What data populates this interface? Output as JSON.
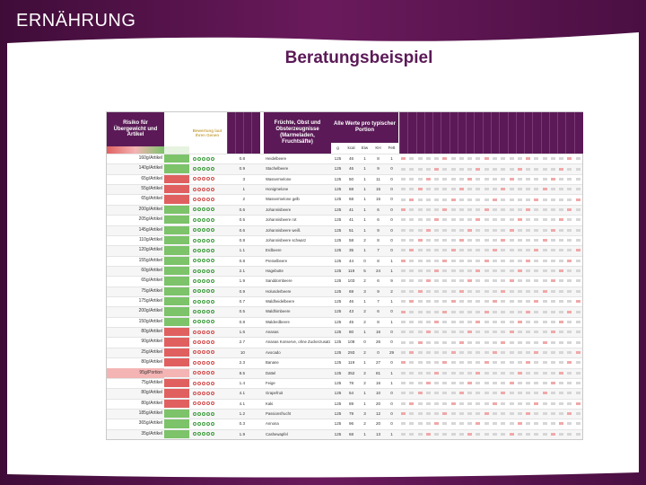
{
  "header": {
    "section": "ERNÄHRUNG",
    "title": "Beratungsbeispiel"
  },
  "table": {
    "columns": {
      "risk": "Risiko für Übergewicht und Artikel",
      "rating": "Bewertung laut Ihren Genen",
      "food": "Früchte, Obst und Obsterzeugnisse (Marmeladen, Fruchtsäfte)",
      "portion": "Alle Werte pro typischer Portion",
      "g": "g",
      "kcal": "kcal",
      "eiw": "Eiw",
      "kh": "KH",
      "fett": "Fett"
    },
    "level_colors": {
      "green": "#7cc36a",
      "red": "#e06060",
      "pale": "#f4b4b4"
    },
    "rows": [
      {
        "risk": "160g/Artikel",
        "score": 0.8,
        "food": "Heidelbeere",
        "g": 125,
        "kcal": 46,
        "eiw": 1,
        "kh": 8,
        "fett": 1,
        "level": "green"
      },
      {
        "risk": "140g/Artikel",
        "score": 0.9,
        "food": "Stachelbeere",
        "g": 125,
        "kcal": 46,
        "eiw": 1,
        "kh": 9,
        "fett": 0,
        "level": "green"
      },
      {
        "risk": "65g/Artikel",
        "score": 3,
        "food": "Wassermelone",
        "g": 125,
        "kcal": 50,
        "eiw": 1,
        "kh": 11,
        "fett": 0,
        "level": "red"
      },
      {
        "risk": "55g/Artikel",
        "score": 1,
        "food": "Honigmelone",
        "g": 125,
        "kcal": 68,
        "eiw": 1,
        "kh": 15,
        "fett": 0,
        "level": "red"
      },
      {
        "risk": "65g/Artikel",
        "score": 2,
        "food": "Wassermelone gelb",
        "g": 125,
        "kcal": 68,
        "eiw": 1,
        "kh": 15,
        "fett": 0,
        "level": "red"
      },
      {
        "risk": "200g/Artikel",
        "score": 0.6,
        "food": "Johannisbeere",
        "g": 125,
        "kcal": 41,
        "eiw": 1,
        "kh": 6,
        "fett": 0,
        "level": "green"
      },
      {
        "risk": "205g/Artikel",
        "score": 0.5,
        "food": "Johannisbeere rot",
        "g": 125,
        "kcal": 41,
        "eiw": 1,
        "kh": 6,
        "fett": 0,
        "level": "green"
      },
      {
        "risk": "145g/Artikel",
        "score": 0.6,
        "food": "Johannisbeere weiß",
        "g": 125,
        "kcal": 51,
        "eiw": 1,
        "kh": 9,
        "fett": 0,
        "level": "green"
      },
      {
        "risk": "110g/Artikel",
        "score": 0.8,
        "food": "Johannisbeere schwarz",
        "g": 125,
        "kcal": 58,
        "eiw": 2,
        "kh": 8,
        "fett": 0,
        "level": "green"
      },
      {
        "risk": "120g/Artikel",
        "score": 1.1,
        "food": "Erdbeere",
        "g": 125,
        "kcal": 35,
        "eiw": 1,
        "kh": 7,
        "fett": 0,
        "level": "green"
      },
      {
        "risk": "155g/Artikel",
        "score": 0.8,
        "food": "Preiselbeere",
        "g": 125,
        "kcal": 44,
        "eiw": 0,
        "kh": 8,
        "fett": 1,
        "level": "green"
      },
      {
        "risk": "60g/Artikel",
        "score": 2.1,
        "food": "Hagebutte",
        "g": 125,
        "kcal": 119,
        "eiw": 5,
        "kh": 24,
        "fett": 1,
        "level": "green"
      },
      {
        "risk": "65g/Artikel",
        "score": 1.9,
        "food": "Sanddornbeere",
        "g": 125,
        "kcal": 103,
        "eiw": 2,
        "kh": 6,
        "fett": 9,
        "level": "green"
      },
      {
        "risk": "75g/Artikel",
        "score": 0.9,
        "food": "Holunderbeere",
        "g": 125,
        "kcal": 69,
        "eiw": 3,
        "kh": 9,
        "fett": 2,
        "level": "green"
      },
      {
        "risk": "175g/Artikel",
        "score": 0.7,
        "food": "Waldheidelbeere",
        "g": 125,
        "kcal": 46,
        "eiw": 1,
        "kh": 7,
        "fett": 1,
        "level": "green"
      },
      {
        "risk": "200g/Artikel",
        "score": 0.5,
        "food": "Waldhimbeere",
        "g": 125,
        "kcal": 43,
        "eiw": 2,
        "kh": 6,
        "fett": 0,
        "level": "green"
      },
      {
        "risk": "150g/Artikel",
        "score": 0.8,
        "food": "Walderdbeere",
        "g": 125,
        "kcal": 45,
        "eiw": 2,
        "kh": 8,
        "fett": 1,
        "level": "green"
      },
      {
        "risk": "80g/Artikel",
        "score": 1.6,
        "food": "Ananas",
        "g": 125,
        "kcal": 80,
        "eiw": 1,
        "kh": 16,
        "fett": 0,
        "level": "red"
      },
      {
        "risk": "90g/Artikel",
        "score": 2.7,
        "food": "Ananas Konserve, ohne Zuckerzusatz",
        "g": 125,
        "kcal": 108,
        "eiw": 0,
        "kh": 26,
        "fett": 0,
        "level": "red"
      },
      {
        "risk": "25g/Artikel",
        "score": 10,
        "food": "Avocado",
        "g": 125,
        "kcal": 293,
        "eiw": 2,
        "kh": 0,
        "fett": 29,
        "level": "red"
      },
      {
        "risk": "80g/Artikel",
        "score": 2.3,
        "food": "Banane",
        "g": 125,
        "kcal": 119,
        "eiw": 1,
        "kh": 27,
        "fett": 0,
        "level": "red"
      },
      {
        "risk": "95g/Portion",
        "score": 8.5,
        "food": "Dattel",
        "g": 125,
        "kcal": 352,
        "eiw": 2,
        "kh": 81,
        "fett": 1,
        "level": "pale"
      },
      {
        "risk": "75g/Artikel",
        "score": 1.4,
        "food": "Feige",
        "g": 125,
        "kcal": 78,
        "eiw": 2,
        "kh": 16,
        "fett": 1,
        "level": "red"
      },
      {
        "risk": "80g/Artikel",
        "score": 4.1,
        "food": "Grapefruit",
        "g": 125,
        "kcal": 54,
        "eiw": 1,
        "kh": 10,
        "fett": 0,
        "level": "red"
      },
      {
        "risk": "80g/Artikel",
        "score": 4.1,
        "food": "Kaki",
        "g": 125,
        "kcal": 89,
        "eiw": 1,
        "kh": 20,
        "fett": 0,
        "level": "red"
      },
      {
        "risk": "185g/Artikel",
        "score": 1.2,
        "food": "Passionsfrucht",
        "g": 125,
        "kcal": 79,
        "eiw": 3,
        "kh": 12,
        "fett": 0,
        "level": "green"
      },
      {
        "risk": "365g/Artikel",
        "score": 0.3,
        "food": "Annona",
        "g": 125,
        "kcal": 96,
        "eiw": 2,
        "kh": 20,
        "fett": 0,
        "level": "green"
      },
      {
        "risk": "35g/Artikel",
        "score": 1.9,
        "food": "Cashewapfel",
        "g": 125,
        "kcal": 68,
        "eiw": 1,
        "kh": 13,
        "fett": 1,
        "level": "green"
      }
    ]
  }
}
